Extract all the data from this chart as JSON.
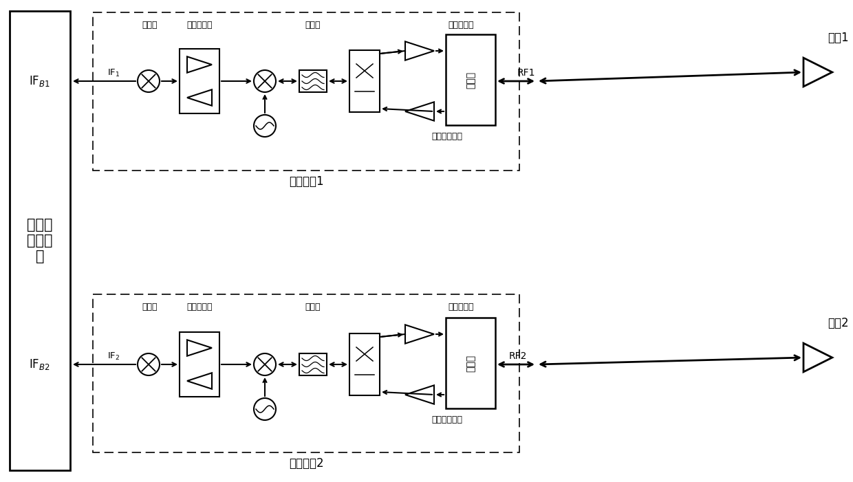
{
  "bg": "#ffffff",
  "left_label": "多通道\n信号处\n理",
  "ifb1": "IF$_{B1}$",
  "ifb2": "IF$_{B2}$",
  "if1": "IF$_1$",
  "if2": "IF$_2$",
  "rf1": "RF1",
  "rf2": "RF2",
  "mixer_lbl": "混频器",
  "ifamp_lbl": "中频放大器",
  "filter_lbl": "滤波器",
  "pa_lbl": "功率放大器",
  "lna_lbl": "低噪声放大器",
  "ch1_lbl": "收发通道1",
  "ch2_lbl": "收发通道2",
  "ant1_lbl": "天线1",
  "ant2_lbl": "天线2",
  "duplex_lbl": "双工器"
}
